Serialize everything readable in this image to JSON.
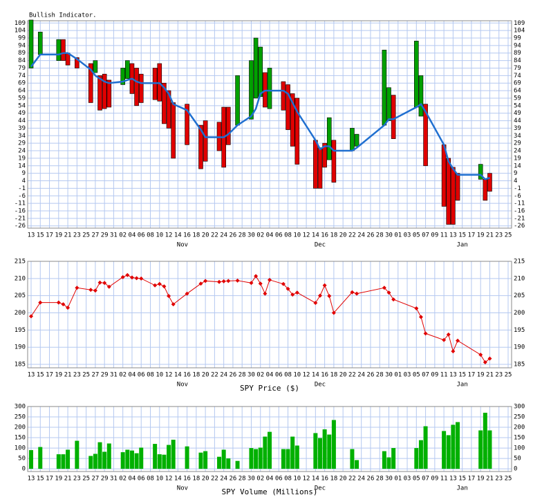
{
  "chart_data": [
    {
      "type": "indicator",
      "title": "Bullish Indicator.",
      "xlim": [
        0,
        104
      ],
      "xticks": [
        {
          "value": 0,
          "label": "13"
        },
        {
          "value": 2,
          "label": "15"
        },
        {
          "value": 4,
          "label": "17"
        },
        {
          "value": 6,
          "label": "19"
        },
        {
          "value": 8,
          "label": "21"
        },
        {
          "value": 10,
          "label": "23"
        },
        {
          "value": 12,
          "label": "25"
        },
        {
          "value": 14,
          "label": "27"
        },
        {
          "value": 16,
          "label": "29"
        },
        {
          "value": 18,
          "label": "31"
        },
        {
          "value": 20,
          "label": "02"
        },
        {
          "value": 22,
          "label": "04"
        },
        {
          "value": 24,
          "label": "06"
        },
        {
          "value": 26,
          "label": "08"
        },
        {
          "value": 28,
          "label": "10"
        },
        {
          "value": 30,
          "label": "12"
        },
        {
          "value": 32,
          "label": "14"
        },
        {
          "value": 34,
          "label": "16"
        },
        {
          "value": 36,
          "label": "18"
        },
        {
          "value": 38,
          "label": "20"
        },
        {
          "value": 40,
          "label": "22"
        },
        {
          "value": 42,
          "label": "24"
        },
        {
          "value": 44,
          "label": "26"
        },
        {
          "value": 46,
          "label": "28"
        },
        {
          "value": 48,
          "label": "30"
        },
        {
          "value": 50,
          "label": "02"
        },
        {
          "value": 52,
          "label": "04"
        },
        {
          "value": 54,
          "label": "06"
        },
        {
          "value": 56,
          "label": "08"
        },
        {
          "value": 58,
          "label": "10"
        },
        {
          "value": 60,
          "label": "12"
        },
        {
          "value": 62,
          "label": "14"
        },
        {
          "value": 64,
          "label": "16"
        },
        {
          "value": 66,
          "label": "18"
        },
        {
          "value": 68,
          "label": "20"
        },
        {
          "value": 70,
          "label": "22"
        },
        {
          "value": 72,
          "label": "24"
        },
        {
          "value": 74,
          "label": "26"
        },
        {
          "value": 76,
          "label": "28"
        },
        {
          "value": 78,
          "label": "30"
        },
        {
          "value": 80,
          "label": "01"
        },
        {
          "value": 82,
          "label": "03"
        },
        {
          "value": 84,
          "label": "05"
        },
        {
          "value": 86,
          "label": "07"
        },
        {
          "value": 88,
          "label": "09"
        },
        {
          "value": 90,
          "label": "11"
        },
        {
          "value": 92,
          "label": "13"
        },
        {
          "value": 94,
          "label": "15"
        },
        {
          "value": 96,
          "label": "17"
        },
        {
          "value": 98,
          "label": "19"
        },
        {
          "value": 100,
          "label": "21"
        },
        {
          "value": 102,
          "label": "23"
        },
        {
          "value": 104,
          "label": "25"
        }
      ],
      "months": [
        {
          "value": 33,
          "label": "Nov"
        },
        {
          "value": 63,
          "label": "Dec"
        },
        {
          "value": 94,
          "label": "Jan"
        }
      ],
      "ylim": [
        -27.5,
        110.5
      ],
      "yticks": [
        109,
        104,
        99,
        94,
        89,
        84,
        79,
        74,
        69,
        64,
        59,
        54,
        49,
        44,
        39,
        34,
        29,
        24,
        19,
        14,
        9,
        4,
        -1,
        -6,
        -11,
        -16,
        -21,
        -26
      ],
      "up_color": "#00a000",
      "down_color": "#e00000",
      "line_color": "#1f6fd0",
      "grid": true,
      "x": [
        0,
        2,
        6,
        7,
        8,
        10,
        13,
        14,
        15,
        16,
        17,
        20,
        21,
        22,
        23,
        24,
        27,
        28,
        29,
        30,
        31,
        34,
        37,
        38,
        41,
        42,
        43,
        45,
        48,
        49,
        50,
        51,
        52,
        55,
        56,
        57,
        58,
        62,
        63,
        64,
        65,
        66,
        70,
        71,
        77,
        78,
        79,
        84,
        85,
        86,
        90,
        91,
        92,
        93,
        98,
        99,
        100
      ],
      "open": [
        79,
        88,
        84,
        98,
        89,
        86,
        82,
        76,
        74,
        75,
        71,
        68,
        72,
        82,
        79,
        75,
        79,
        82,
        69,
        64,
        56,
        55,
        41,
        44,
        43,
        53,
        53,
        41,
        45,
        59,
        60,
        76,
        52,
        70,
        68,
        62,
        59,
        31,
        26,
        29,
        18,
        31,
        24,
        27,
        41,
        44,
        61,
        53,
        47,
        55,
        28,
        19,
        13,
        9,
        5,
        5,
        9
      ],
      "close": [
        111,
        103,
        98,
        84,
        81,
        79,
        56,
        84,
        51,
        52,
        53,
        79,
        84,
        62,
        54,
        56,
        58,
        57,
        42,
        39,
        19,
        28,
        12,
        17,
        24,
        13,
        28,
        74,
        84,
        99,
        93,
        53,
        79,
        51,
        38,
        27,
        15,
        -1,
        -1,
        13,
        46,
        3,
        39,
        35,
        91,
        66,
        32,
        97,
        74,
        14,
        -13,
        -25,
        -25,
        -9,
        15,
        -9,
        -3
      ],
      "line": [
        80,
        88,
        88,
        89,
        89,
        85,
        78,
        74,
        72,
        70,
        69,
        70,
        71,
        72,
        70,
        69,
        69,
        69,
        66,
        62,
        55,
        51,
        38,
        33,
        33,
        33,
        35,
        41,
        47,
        52,
        62,
        64,
        64,
        64,
        62,
        56,
        50,
        31,
        25,
        27,
        27,
        24,
        24,
        26,
        41,
        45,
        45,
        53,
        55,
        50,
        28,
        17,
        12,
        8,
        8,
        5,
        6
      ]
    },
    {
      "type": "line",
      "xlabel": "SPY Price ($)",
      "color": "#e00000",
      "grid": true,
      "ylim": [
        184,
        215
      ],
      "yticks": [
        185,
        190,
        195,
        200,
        205,
        210,
        215
      ],
      "x": [
        0,
        2,
        6,
        7,
        8,
        10,
        13,
        14,
        15,
        16,
        17,
        20,
        21,
        22,
        23,
        24,
        27,
        28,
        29,
        30,
        31,
        34,
        37,
        38,
        41,
        42,
        43,
        45,
        48,
        49,
        50,
        51,
        52,
        55,
        56,
        57,
        58,
        62,
        63,
        64,
        65,
        66,
        70,
        71,
        77,
        78,
        79,
        84,
        85,
        86,
        90,
        91,
        92,
        93,
        98,
        99,
        100
      ],
      "values": [
        199,
        203,
        203,
        202.5,
        201.5,
        207.3,
        206.7,
        206.5,
        208.8,
        208.7,
        207.6,
        210.4,
        211,
        210.3,
        210.1,
        210,
        208,
        208.4,
        207.7,
        204.9,
        202.5,
        205.6,
        208.5,
        209.3,
        209,
        209.2,
        209.3,
        209.4,
        208.7,
        210.7,
        208.5,
        205.6,
        209.6,
        208.4,
        207,
        205.3,
        205.9,
        202.9,
        205,
        208,
        204.9,
        200,
        206,
        205.6,
        207.3,
        205.9,
        203.9,
        201.3,
        198.8,
        194,
        192.1,
        193.7,
        188.8,
        191.9,
        187.8,
        185.6,
        186.7
      ]
    },
    {
      "type": "bar",
      "xlabel": "SPY Volume (Millions)",
      "color": "#00b000",
      "grid": true,
      "ylim": [
        -13,
        300
      ],
      "yticks": [
        0,
        50,
        100,
        150,
        200,
        250,
        300
      ],
      "x": [
        0,
        2,
        6,
        7,
        8,
        10,
        13,
        14,
        15,
        16,
        17,
        20,
        21,
        22,
        23,
        24,
        27,
        28,
        29,
        30,
        31,
        34,
        37,
        38,
        41,
        42,
        43,
        45,
        48,
        49,
        50,
        51,
        52,
        55,
        56,
        57,
        58,
        62,
        63,
        64,
        65,
        66,
        70,
        71,
        77,
        78,
        79,
        84,
        85,
        86,
        90,
        91,
        92,
        93,
        98,
        99,
        100
      ],
      "values": [
        90,
        105,
        70,
        70,
        92,
        135,
        62,
        72,
        128,
        82,
        122,
        80,
        92,
        88,
        75,
        102,
        120,
        70,
        68,
        115,
        140,
        108,
        78,
        85,
        58,
        92,
        50,
        38,
        100,
        95,
        102,
        155,
        178,
        95,
        95,
        155,
        112,
        172,
        148,
        190,
        165,
        235,
        95,
        42,
        85,
        55,
        100,
        100,
        138,
        205,
        182,
        162,
        212,
        225,
        185,
        270,
        185
      ]
    }
  ]
}
